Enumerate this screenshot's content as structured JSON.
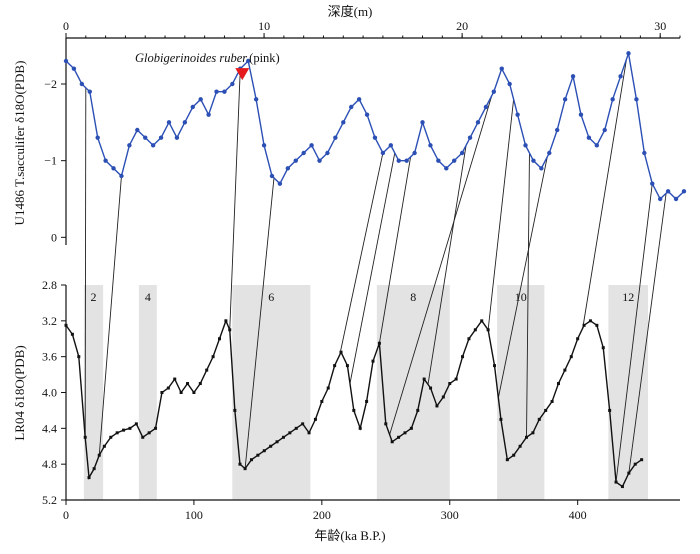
{
  "chart_data": [
    {
      "name": "upper-panel",
      "type": "line",
      "ylabel": "U1486 T.sacculifer δ18O(PDB)",
      "top_axis": {
        "title": "深度(m)",
        "ticks": [
          0,
          10,
          20,
          30
        ],
        "range": [
          0,
          31
        ]
      },
      "ylim": [
        0.1,
        -2.6
      ],
      "yticks": [
        0,
        -1,
        -2
      ],
      "series_color": "#2b4fb5",
      "annotation": {
        "text_italic": "Globigerinoides ruber",
        "text_plain": "(pink)",
        "depth": 8.9,
        "d18O": -2.05,
        "marker_color": "#e41a1c"
      },
      "series": [
        {
          "name": "T. sacculifer δ18O",
          "x": [
            0,
            0.4,
            0.8,
            1.2,
            1.6,
            2.0,
            2.4,
            2.8,
            3.2,
            3.6,
            4.0,
            4.4,
            4.8,
            5.2,
            5.6,
            6.0,
            6.4,
            6.8,
            7.2,
            7.6,
            8.0,
            8.4,
            8.8,
            9.2,
            9.6,
            10.0,
            10.4,
            10.8,
            11.2,
            11.6,
            12.0,
            12.4,
            12.8,
            13.2,
            13.6,
            14.0,
            14.4,
            14.8,
            15.2,
            15.6,
            16.0,
            16.4,
            16.8,
            17.2,
            17.6,
            18.0,
            18.4,
            18.8,
            19.2,
            19.6,
            20.0,
            20.4,
            20.8,
            21.2,
            21.6,
            22.0,
            22.4,
            22.8,
            23.2,
            23.6,
            24.0,
            24.4,
            24.8,
            25.2,
            25.6,
            26.0,
            26.4,
            26.8,
            27.2,
            27.6,
            28.0,
            28.4,
            28.8,
            29.2,
            29.6,
            30.0,
            30.4,
            30.8,
            31.2
          ],
          "values": [
            -2.3,
            -2.2,
            -2.0,
            -1.9,
            -1.3,
            -1.0,
            -0.9,
            -0.8,
            -1.2,
            -1.4,
            -1.3,
            -1.2,
            -1.3,
            -1.5,
            -1.3,
            -1.5,
            -1.7,
            -1.8,
            -1.6,
            -1.9,
            -1.9,
            -2.0,
            -2.2,
            -2.3,
            -1.8,
            -1.2,
            -0.8,
            -0.7,
            -0.9,
            -1.0,
            -1.1,
            -1.2,
            -1.0,
            -1.1,
            -1.3,
            -1.5,
            -1.7,
            -1.8,
            -1.6,
            -1.3,
            -1.1,
            -1.2,
            -1.0,
            -1.0,
            -1.1,
            -1.5,
            -1.2,
            -1.0,
            -0.9,
            -1.0,
            -1.1,
            -1.3,
            -1.5,
            -1.7,
            -1.9,
            -2.2,
            -2.0,
            -1.6,
            -1.2,
            -1.0,
            -0.9,
            -1.1,
            -1.4,
            -1.8,
            -2.1,
            -1.6,
            -1.3,
            -1.2,
            -1.4,
            -1.8,
            -2.1,
            -2.4,
            -1.8,
            -1.1,
            -0.7,
            -0.5,
            -0.6,
            -0.5,
            -0.6
          ]
        }
      ]
    },
    {
      "name": "lower-panel",
      "type": "line",
      "ylabel": "LR04 δ18O(PDB)",
      "xlabel": "年龄(ka B.P.)",
      "xlim": [
        0,
        480
      ],
      "xticks": [
        0,
        100,
        200,
        300,
        400
      ],
      "ylim": [
        5.2,
        2.8
      ],
      "yticks": [
        2.8,
        3.2,
        3.6,
        4.0,
        4.4,
        4.8,
        5.2
      ],
      "series_color": "#111111",
      "stages": [
        {
          "label": "2",
          "from": 14,
          "to": 29
        },
        {
          "label": "4",
          "from": 57,
          "to": 71
        },
        {
          "label": "6",
          "from": 130,
          "to": 191
        },
        {
          "label": "8",
          "from": 243,
          "to": 300
        },
        {
          "label": "10",
          "from": 337,
          "to": 374
        },
        {
          "label": "12",
          "from": 424,
          "to": 455
        }
      ],
      "series": [
        {
          "name": "LR04 stack",
          "x": [
            0,
            5,
            10,
            15,
            18,
            22,
            26,
            30,
            35,
            40,
            45,
            50,
            55,
            60,
            65,
            70,
            75,
            80,
            85,
            90,
            95,
            100,
            105,
            110,
            115,
            120,
            125,
            128,
            132,
            136,
            140,
            145,
            150,
            155,
            160,
            165,
            170,
            175,
            180,
            185,
            190,
            195,
            200,
            205,
            210,
            215,
            220,
            225,
            230,
            235,
            240,
            245,
            250,
            255,
            260,
            265,
            270,
            275,
            280,
            285,
            290,
            295,
            300,
            305,
            310,
            315,
            320,
            325,
            330,
            335,
            340,
            345,
            350,
            355,
            360,
            365,
            370,
            375,
            380,
            385,
            390,
            395,
            400,
            405,
            410,
            415,
            420,
            425,
            430,
            435,
            440,
            445,
            450
          ],
          "values": [
            3.25,
            3.35,
            3.6,
            4.5,
            4.95,
            4.85,
            4.7,
            4.6,
            4.5,
            4.45,
            4.42,
            4.4,
            4.35,
            4.5,
            4.45,
            4.4,
            4.0,
            3.95,
            3.85,
            4.0,
            3.9,
            4.0,
            3.9,
            3.75,
            3.6,
            3.4,
            3.2,
            3.3,
            4.2,
            4.8,
            4.85,
            4.75,
            4.7,
            4.65,
            4.6,
            4.55,
            4.5,
            4.45,
            4.4,
            4.35,
            4.45,
            4.3,
            4.1,
            3.95,
            3.7,
            3.55,
            3.7,
            4.2,
            4.4,
            4.1,
            3.65,
            3.45,
            4.35,
            4.55,
            4.5,
            4.45,
            4.4,
            4.2,
            3.85,
            3.95,
            4.15,
            4.05,
            3.9,
            3.85,
            3.6,
            3.4,
            3.3,
            3.2,
            3.3,
            3.7,
            4.3,
            4.75,
            4.7,
            4.6,
            4.5,
            4.45,
            4.3,
            4.2,
            4.1,
            3.9,
            3.75,
            3.6,
            3.4,
            3.25,
            3.2,
            3.25,
            3.5,
            4.2,
            5.0,
            5.05,
            4.9,
            4.8,
            4.75
          ]
        }
      ]
    }
  ],
  "tie_lines": [
    {
      "depth": 1.0,
      "age": 15
    },
    {
      "depth": 2.8,
      "age": 26
    },
    {
      "depth": 8.8,
      "age": 128
    },
    {
      "depth": 10.5,
      "age": 140
    },
    {
      "depth": 16.0,
      "age": 214
    },
    {
      "depth": 16.6,
      "age": 222
    },
    {
      "depth": 17.4,
      "age": 245
    },
    {
      "depth": 20.2,
      "age": 283
    },
    {
      "depth": 21.5,
      "age": 253
    },
    {
      "depth": 22.6,
      "age": 330
    },
    {
      "depth": 23.4,
      "age": 360
    },
    {
      "depth": 24.3,
      "age": 338
    },
    {
      "depth": 28.3,
      "age": 404
    },
    {
      "depth": 29.6,
      "age": 430
    },
    {
      "depth": 30.3,
      "age": 440
    }
  ]
}
